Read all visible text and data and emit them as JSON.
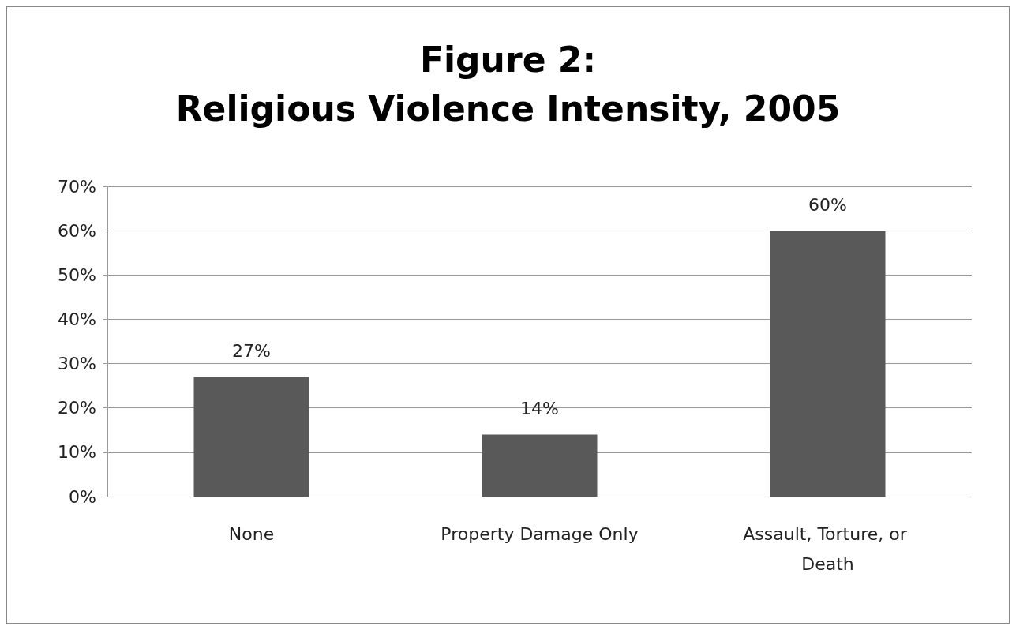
{
  "chart_data": {
    "type": "bar",
    "title": "Figure 2:\nReligious Violence Intensity, 2005",
    "categories": [
      "None",
      "Property Damage Only",
      "Assault, Torture, or Death"
    ],
    "values": [
      27,
      14,
      60
    ],
    "color": "#595959",
    "value_labels": [
      "27%",
      "14%",
      "60%"
    ],
    "ylim": [
      0,
      70
    ],
    "yticks": [
      {
        "value": 0,
        "label": "0%"
      },
      {
        "value": 10,
        "label": "10%"
      },
      {
        "value": 20,
        "label": "20%"
      },
      {
        "value": 30,
        "label": "30%"
      },
      {
        "value": 40,
        "label": "40%"
      },
      {
        "value": 50,
        "label": "50%"
      },
      {
        "value": 60,
        "label": "60%"
      },
      {
        "value": 70,
        "label": "70%"
      }
    ],
    "grid": "y"
  }
}
